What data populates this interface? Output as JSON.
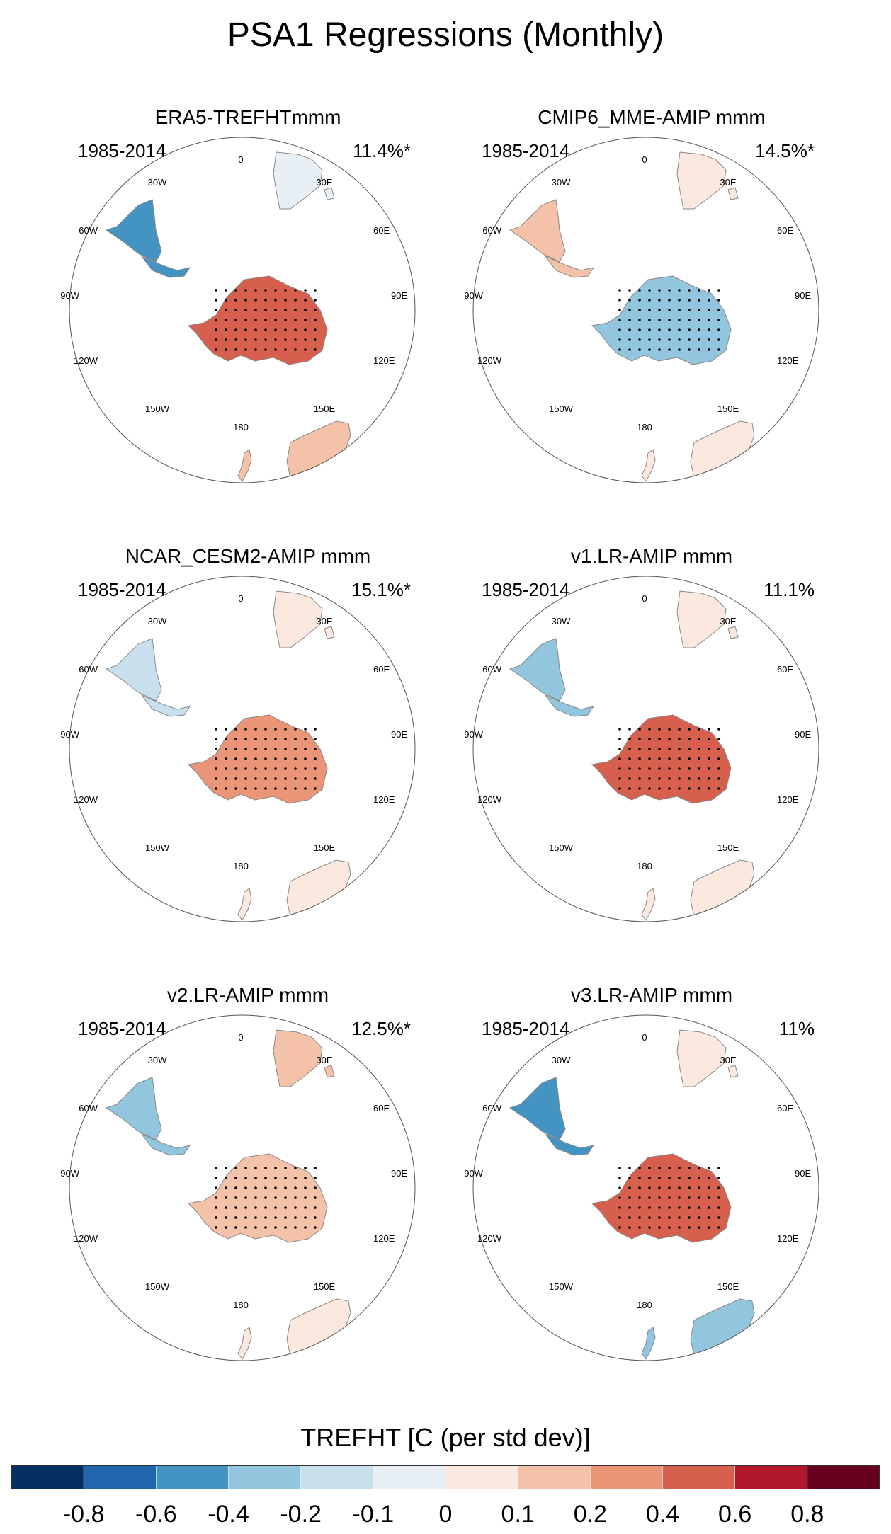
{
  "title": "PSA1 Regressions (Monthly)",
  "colorbar": {
    "title": "TREFHT [C (per std dev)]",
    "colors": [
      "#053061",
      "#2166ac",
      "#4393c3",
      "#92c5de",
      "#c8e0ee",
      "#e8f0f6",
      "#fbe8df",
      "#f4c2a8",
      "#ea9478",
      "#d6604d",
      "#b2182b",
      "#67001f"
    ],
    "labels": [
      "-0.8",
      "-0.6",
      "-0.4",
      "-0.2",
      "-0.1",
      "0",
      "0.1",
      "0.2",
      "0.4",
      "0.6",
      "0.8"
    ]
  },
  "lon_labels": [
    "0",
    "30E",
    "60E",
    "90E",
    "120E",
    "150E",
    "180",
    "150W",
    "120W",
    "90W",
    "60W",
    "30W"
  ],
  "panels": [
    {
      "title": "ERA5-TREFHTmmm",
      "period": "1985-2014",
      "pct": "11.4%*",
      "antarctica": "#d6604d",
      "samerica": "#4393c3",
      "australia": "#f4c2a8",
      "africa": "#e8f0f6"
    },
    {
      "title": "CMIP6_MME-AMIP  mmm",
      "period": "1985-2014",
      "pct": "14.5%*",
      "antarctica": "#92c5de",
      "samerica": "#f4c2a8",
      "australia": "#fbe8df",
      "africa": "#fbe8df"
    },
    {
      "title": "NCAR_CESM2-AMIP  mmm",
      "period": "1985-2014",
      "pct": "15.1%*",
      "antarctica": "#ea9478",
      "samerica": "#c8e0ee",
      "australia": "#fbe8df",
      "africa": "#fbe8df"
    },
    {
      "title": "v1.LR-AMIP  mmm",
      "period": "1985-2014",
      "pct": "11.1%",
      "antarctica": "#d6604d",
      "samerica": "#92c5de",
      "australia": "#fbe8df",
      "africa": "#fbe8df"
    },
    {
      "title": "v2.LR-AMIP  mmm",
      "period": "1985-2014",
      "pct": "12.5%*",
      "antarctica": "#f4c2a8",
      "samerica": "#92c5de",
      "australia": "#fbe8df",
      "africa": "#f4c2a8"
    },
    {
      "title": "v3.LR-AMIP  mmm",
      "period": "1985-2014",
      "pct": "11%",
      "antarctica": "#d6604d",
      "samerica": "#4393c3",
      "australia": "#92c5de",
      "africa": "#fbe8df"
    }
  ]
}
